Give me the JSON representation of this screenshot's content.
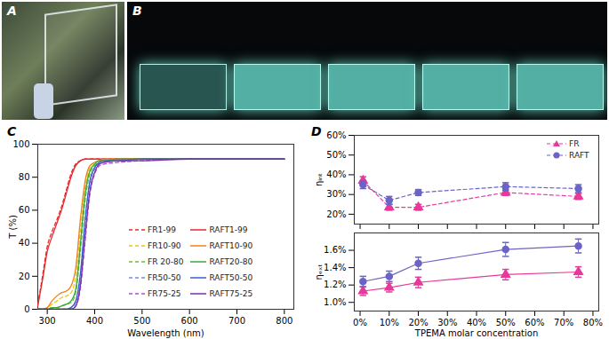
{
  "images": [
    {
      "label": "A"
    },
    {
      "label": "B"
    }
  ],
  "chart_data": [
    {
      "type": "line",
      "title": "C",
      "x_label": "Wavelength (nm)",
      "y_label": "T (%)",
      "x": [
        280,
        290,
        300,
        310,
        320,
        330,
        340,
        350,
        360,
        370,
        380,
        390,
        400,
        410,
        420,
        450,
        500,
        600,
        700,
        800
      ],
      "xlim": [
        280,
        820
      ],
      "xticks": [
        300,
        400,
        500,
        600,
        700,
        800
      ],
      "ylim": [
        0,
        100
      ],
      "yticks": [
        0,
        20,
        40,
        60,
        80,
        100
      ],
      "legend": "bottom-right",
      "series": [
        {
          "name": "FR1-99",
          "color": "#e8282a",
          "line_style": "dashed",
          "values": [
            3,
            20,
            38,
            47,
            54,
            62,
            72,
            82,
            88,
            90,
            91,
            91,
            91,
            91,
            91,
            91,
            91,
            91,
            91,
            91
          ]
        },
        {
          "name": "FR10-90",
          "color": "#e6c619",
          "line_style": "dashed",
          "values": [
            0,
            0,
            1,
            3,
            5,
            7,
            8,
            10,
            20,
            48,
            74,
            86,
            89,
            90,
            90,
            91,
            91,
            91,
            91,
            91
          ]
        },
        {
          "name": "FR 20-80",
          "color": "#6cbf3c",
          "line_style": "dashed",
          "values": [
            0,
            0,
            0,
            1,
            1,
            2,
            3,
            4,
            10,
            36,
            66,
            82,
            87,
            89,
            90,
            90,
            91,
            91,
            91,
            91
          ]
        },
        {
          "name": "FR50-50",
          "color": "#6f8fe0",
          "line_style": "dashed",
          "values": [
            0,
            0,
            0,
            0,
            0,
            0,
            0,
            1,
            4,
            20,
            52,
            76,
            85,
            88,
            89,
            90,
            91,
            91,
            91,
            91
          ]
        },
        {
          "name": "FR75-25",
          "color": "#b04fd0",
          "line_style": "dashed",
          "values": [
            0,
            0,
            0,
            0,
            0,
            0,
            0,
            0,
            2,
            13,
            42,
            70,
            82,
            87,
            88,
            89,
            90,
            91,
            91,
            91
          ]
        },
        {
          "name": "RAFT1-99",
          "color": "#e8282a",
          "line_style": "solid",
          "values": [
            2,
            18,
            35,
            44,
            52,
            60,
            70,
            80,
            87,
            90,
            91,
            91,
            91,
            91,
            91,
            91,
            91,
            91,
            91,
            91
          ]
        },
        {
          "name": "RAFT10-90",
          "color": "#f07f1a",
          "line_style": "solid",
          "values": [
            0,
            0,
            1,
            5,
            8,
            10,
            11,
            14,
            25,
            55,
            78,
            87,
            89,
            90,
            91,
            91,
            91,
            91,
            91,
            91
          ]
        },
        {
          "name": "RAFT20-80",
          "color": "#3aa63a",
          "line_style": "solid",
          "values": [
            0,
            0,
            0,
            1,
            1,
            2,
            3,
            5,
            12,
            40,
            70,
            84,
            88,
            90,
            90,
            91,
            91,
            91,
            91,
            91
          ]
        },
        {
          "name": "RAFT50-50",
          "color": "#3a5fcd",
          "line_style": "solid",
          "values": [
            0,
            0,
            0,
            0,
            0,
            0,
            0,
            1,
            5,
            22,
            55,
            78,
            86,
            89,
            90,
            90,
            91,
            91,
            91,
            91
          ]
        },
        {
          "name": "RAFT75-25",
          "color": "#7a2ea8",
          "line_style": "solid",
          "values": [
            0,
            0,
            0,
            0,
            0,
            0,
            0,
            0,
            2,
            15,
            45,
            72,
            83,
            88,
            89,
            90,
            90,
            91,
            91,
            91
          ]
        }
      ]
    },
    {
      "type": "line",
      "title": "D",
      "y_label": "ηᵢₙₜ",
      "x": [
        1,
        10,
        20,
        50,
        75
      ],
      "xlim": [
        -2,
        82
      ],
      "xticks": [
        {
          "value": 0,
          "label": "0%"
        },
        {
          "value": 10,
          "label": "10%"
        },
        {
          "value": 20,
          "label": "20%"
        },
        {
          "value": 30,
          "label": "30%"
        },
        {
          "value": 40,
          "label": "40%"
        },
        {
          "value": 50,
          "label": "50%"
        },
        {
          "value": 60,
          "label": "60%"
        },
        {
          "value": 70,
          "label": "70%"
        },
        {
          "value": 80,
          "label": "80%"
        }
      ],
      "ylim": [
        15,
        60
      ],
      "yticks": [
        {
          "value": 20,
          "label": "20%"
        },
        {
          "value": 30,
          "label": "30%"
        },
        {
          "value": 40,
          "label": "40%"
        },
        {
          "value": 50,
          "label": "50%"
        },
        {
          "value": 60,
          "label": "60%"
        }
      ],
      "tick_labels": "y",
      "legend": "top-right",
      "series": [
        {
          "name": "FR",
          "color": "#e6399b",
          "marker": "triangle",
          "line_style": "dashed",
          "values": [
            37,
            23.5,
            23.5,
            31,
            29
          ],
          "errors": [
            2,
            1.5,
            1.5,
            1.5,
            1.5
          ]
        },
        {
          "name": "RAFT",
          "color": "#6b63c7",
          "marker": "circle",
          "line_style": "dashed",
          "values": [
            35,
            27,
            31,
            34,
            33
          ],
          "errors": [
            2,
            2,
            1.5,
            2,
            2
          ]
        }
      ]
    },
    {
      "type": "line",
      "x_label": "TPEMA molar concentration",
      "y_label": "ηₑₓₜ",
      "x": [
        1,
        10,
        20,
        50,
        75
      ],
      "xlim": [
        -2,
        82
      ],
      "xticks": [
        {
          "value": 0,
          "label": "0%"
        },
        {
          "value": 10,
          "label": "10%"
        },
        {
          "value": 20,
          "label": "20%"
        },
        {
          "value": 30,
          "label": "30%"
        },
        {
          "value": 40,
          "label": "40%"
        },
        {
          "value": 50,
          "label": "50%"
        },
        {
          "value": 60,
          "label": "60%"
        },
        {
          "value": 70,
          "label": "70%"
        },
        {
          "value": 80,
          "label": "80%"
        }
      ],
      "ylim": [
        0.9,
        1.8
      ],
      "yticks": [
        {
          "value": 1.0,
          "label": "1.0%"
        },
        {
          "value": 1.2,
          "label": "1.2%"
        },
        {
          "value": 1.4,
          "label": "1.4%"
        },
        {
          "value": 1.6,
          "label": "1.6%"
        }
      ],
      "series": [
        {
          "name": "FR",
          "color": "#e6399b",
          "marker": "triangle",
          "line_style": "solid",
          "values": [
            1.13,
            1.17,
            1.23,
            1.32,
            1.35
          ],
          "errors": [
            0.05,
            0.05,
            0.06,
            0.06,
            0.06
          ]
        },
        {
          "name": "RAFT",
          "color": "#6b63c7",
          "marker": "circle",
          "line_style": "solid",
          "values": [
            1.24,
            1.3,
            1.45,
            1.61,
            1.65
          ],
          "errors": [
            0.06,
            0.06,
            0.07,
            0.08,
            0.08
          ]
        }
      ]
    }
  ]
}
